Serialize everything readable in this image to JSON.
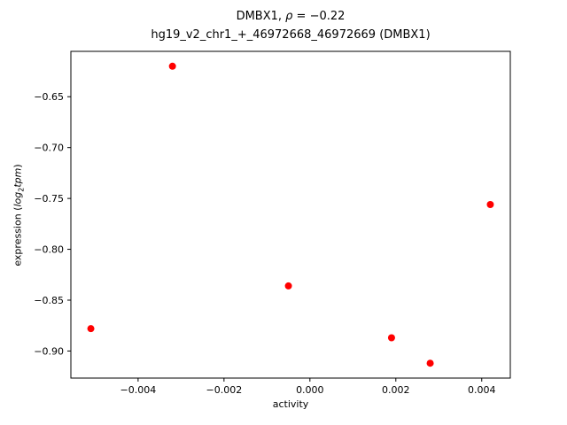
{
  "figure": {
    "title_line1": {
      "prefix": "DMBX1, ",
      "rho": "ρ",
      "suffix": " = −0.22"
    },
    "title_line2": "hg19_v2_chr1_+_46972668_46972669 (DMBX1)",
    "xlabel": "activity",
    "ylabel": {
      "prefix": "expression (",
      "log_word": "log",
      "sub": "2",
      "tpm_word": "tpm",
      "suffix": ")"
    }
  },
  "chart_data": {
    "type": "scatter",
    "title": "DMBX1, ρ = −0.22",
    "subtitle": "hg19_v2_chr1_+_46972668_46972669 (DMBX1)",
    "xlabel": "activity",
    "ylabel": "expression (log2 tpm)",
    "marker_color": "#ff0000",
    "marker_radius": 4,
    "grid": false,
    "legend_position": "none",
    "points": [
      {
        "x": -0.0051,
        "y": -0.878
      },
      {
        "x": -0.0032,
        "y": -0.62
      },
      {
        "x": -0.0005,
        "y": -0.836
      },
      {
        "x": 0.0019,
        "y": -0.887
      },
      {
        "x": 0.0028,
        "y": -0.912
      },
      {
        "x": 0.0042,
        "y": -0.756
      }
    ],
    "xlim": [
      -0.005565,
      0.004665
    ],
    "ylim": [
      -0.9266,
      -0.6054
    ],
    "xticks": {
      "values": [
        -0.004,
        -0.002,
        0.0,
        0.002,
        0.004
      ],
      "labels": [
        "−0.004",
        "−0.002",
        "0.000",
        "0.002",
        "0.004"
      ]
    },
    "yticks": {
      "values": [
        -0.65,
        -0.7,
        -0.75,
        -0.8,
        -0.85,
        -0.9
      ],
      "labels": [
        "−0.65",
        "−0.70",
        "−0.75",
        "−0.80",
        "−0.85",
        "−0.90"
      ]
    }
  }
}
